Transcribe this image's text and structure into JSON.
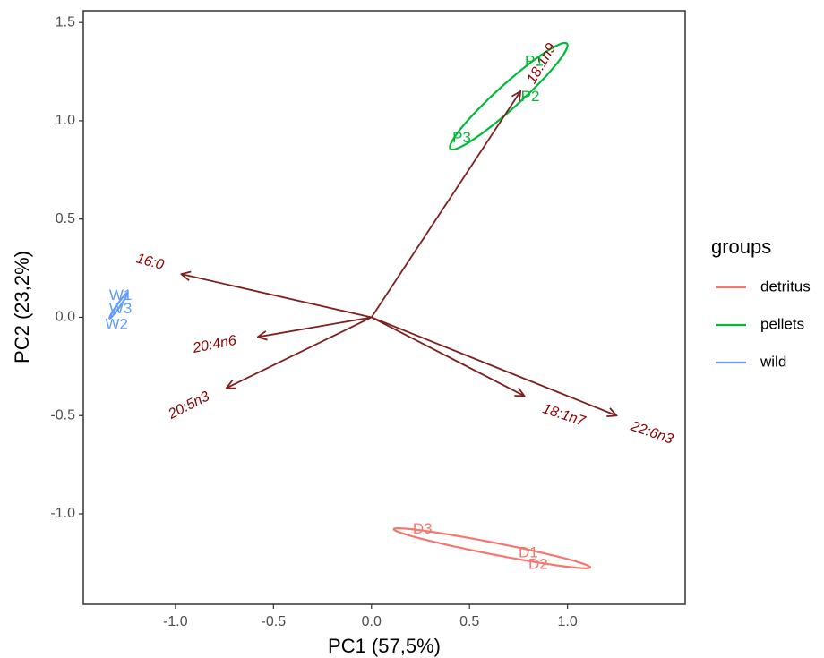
{
  "chart_data": {
    "type": "scatter",
    "xlabel": "PC1 (57,5%)",
    "ylabel": "PC2 (23,2%)",
    "xlim": [
      -1.47,
      1.6
    ],
    "ylim": [
      -1.46,
      1.56
    ],
    "x_ticks": [
      -1.0,
      -0.5,
      0.0,
      0.5,
      1.0
    ],
    "y_ticks": [
      -1.0,
      -0.5,
      0.0,
      0.5,
      1.0,
      1.5
    ],
    "x_tick_labels": [
      "-1.0",
      "-0.5",
      "0.0",
      "0.5",
      "1.0"
    ],
    "y_tick_labels": [
      "-1.0",
      "-0.5",
      "0.0",
      "0.5",
      "1.0",
      "1.5"
    ],
    "grid": false,
    "legend": {
      "title": "groups",
      "position": "right",
      "entries": [
        {
          "label": "detritus",
          "color": "#F8766D"
        },
        {
          "label": "pellets",
          "color": "#00BA38"
        },
        {
          "label": "wild",
          "color": "#619CFF"
        }
      ]
    },
    "groups": [
      {
        "name": "detritus",
        "color": "#F8766D",
        "ellipse": {
          "cx": 0.615,
          "cy": -1.175,
          "rx": 0.51,
          "ry": 0.03,
          "angle_deg": -11
        },
        "points": [
          {
            "label": "D3",
            "x": 0.26,
            "y": -1.08
          },
          {
            "label": "D1",
            "x": 0.8,
            "y": -1.2
          },
          {
            "label": "D2",
            "x": 0.85,
            "y": -1.26
          }
        ]
      },
      {
        "name": "pellets",
        "color": "#00BA38",
        "ellipse": {
          "cx": 0.7,
          "cy": 1.125,
          "rx": 0.4,
          "ry": 0.06,
          "angle_deg": 42
        },
        "points": [
          {
            "label": "P1",
            "x": 0.83,
            "y": 1.3
          },
          {
            "label": "P2",
            "x": 0.81,
            "y": 1.12
          },
          {
            "label": "P3",
            "x": 0.46,
            "y": 0.91
          }
        ]
      },
      {
        "name": "wild",
        "color": "#619CFF",
        "ellipse": {
          "cx": -1.29,
          "cy": 0.06,
          "rx": 0.08,
          "ry": 0.008,
          "angle_deg": 55
        },
        "points": [
          {
            "label": "W1",
            "x": -1.28,
            "y": 0.11
          },
          {
            "label": "W3",
            "x": -1.28,
            "y": 0.04
          },
          {
            "label": "W2",
            "x": -1.3,
            "y": -0.04
          }
        ]
      }
    ],
    "loadings": [
      {
        "label": "16:0",
        "x": -0.97,
        "y": 0.22,
        "label_x": -1.13,
        "label_y": 0.28,
        "label_angle": 15
      },
      {
        "label": "20:4n6",
        "x": -0.58,
        "y": -0.1,
        "label_x": -0.8,
        "label_y": -0.14,
        "label_angle": -11
      },
      {
        "label": "20:5n3",
        "x": -0.74,
        "y": -0.36,
        "label_x": -0.93,
        "label_y": -0.45,
        "label_angle": -27
      },
      {
        "label": "18:1n7",
        "x": 0.78,
        "y": -0.4,
        "label_x": 0.98,
        "label_y": -0.5,
        "label_angle": 18
      },
      {
        "label": "22:6n3",
        "x": 1.25,
        "y": -0.5,
        "label_x": 1.43,
        "label_y": -0.59,
        "label_angle": 19
      },
      {
        "label": "18:1n9",
        "x": 0.76,
        "y": 1.15,
        "label_x": 0.87,
        "label_y": 1.29,
        "label_angle": -60
      }
    ]
  }
}
